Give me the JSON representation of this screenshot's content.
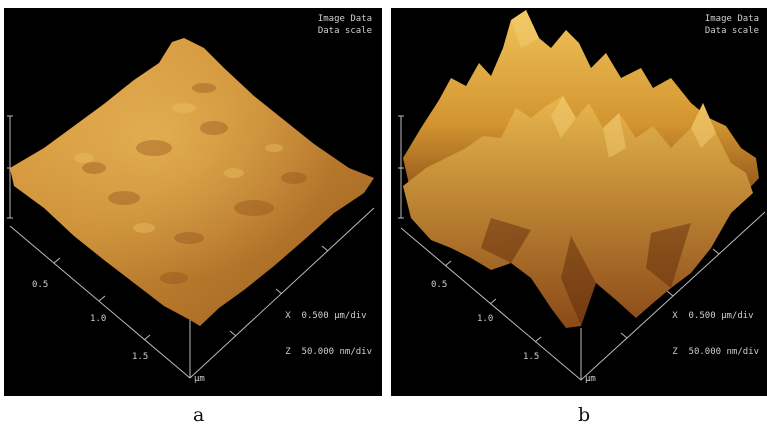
{
  "panels": [
    {
      "id": "a",
      "caption": "a",
      "header_line1": "Image Data",
      "header_line2": "Data scale",
      "x_scale": "X  0.500 µm/div",
      "z_scale": "Z  50.000 nm/div",
      "axis_unit": "µm",
      "axis_ticks": [
        "0.5",
        "1.0",
        "1.5"
      ]
    },
    {
      "id": "b",
      "caption": "b",
      "header_line1": "Image Data",
      "header_line2": "Data scale",
      "x_scale": "X  0.500 µm/div",
      "z_scale": "Z  50.000 nm/div",
      "axis_unit": "µm",
      "axis_ticks": [
        "0.5",
        "1.0",
        "1.5"
      ]
    }
  ],
  "colors": {
    "surface_light": "#e8b44a",
    "surface_mid": "#c98a2e",
    "surface_dark": "#7a3f12",
    "background": "#000000"
  }
}
